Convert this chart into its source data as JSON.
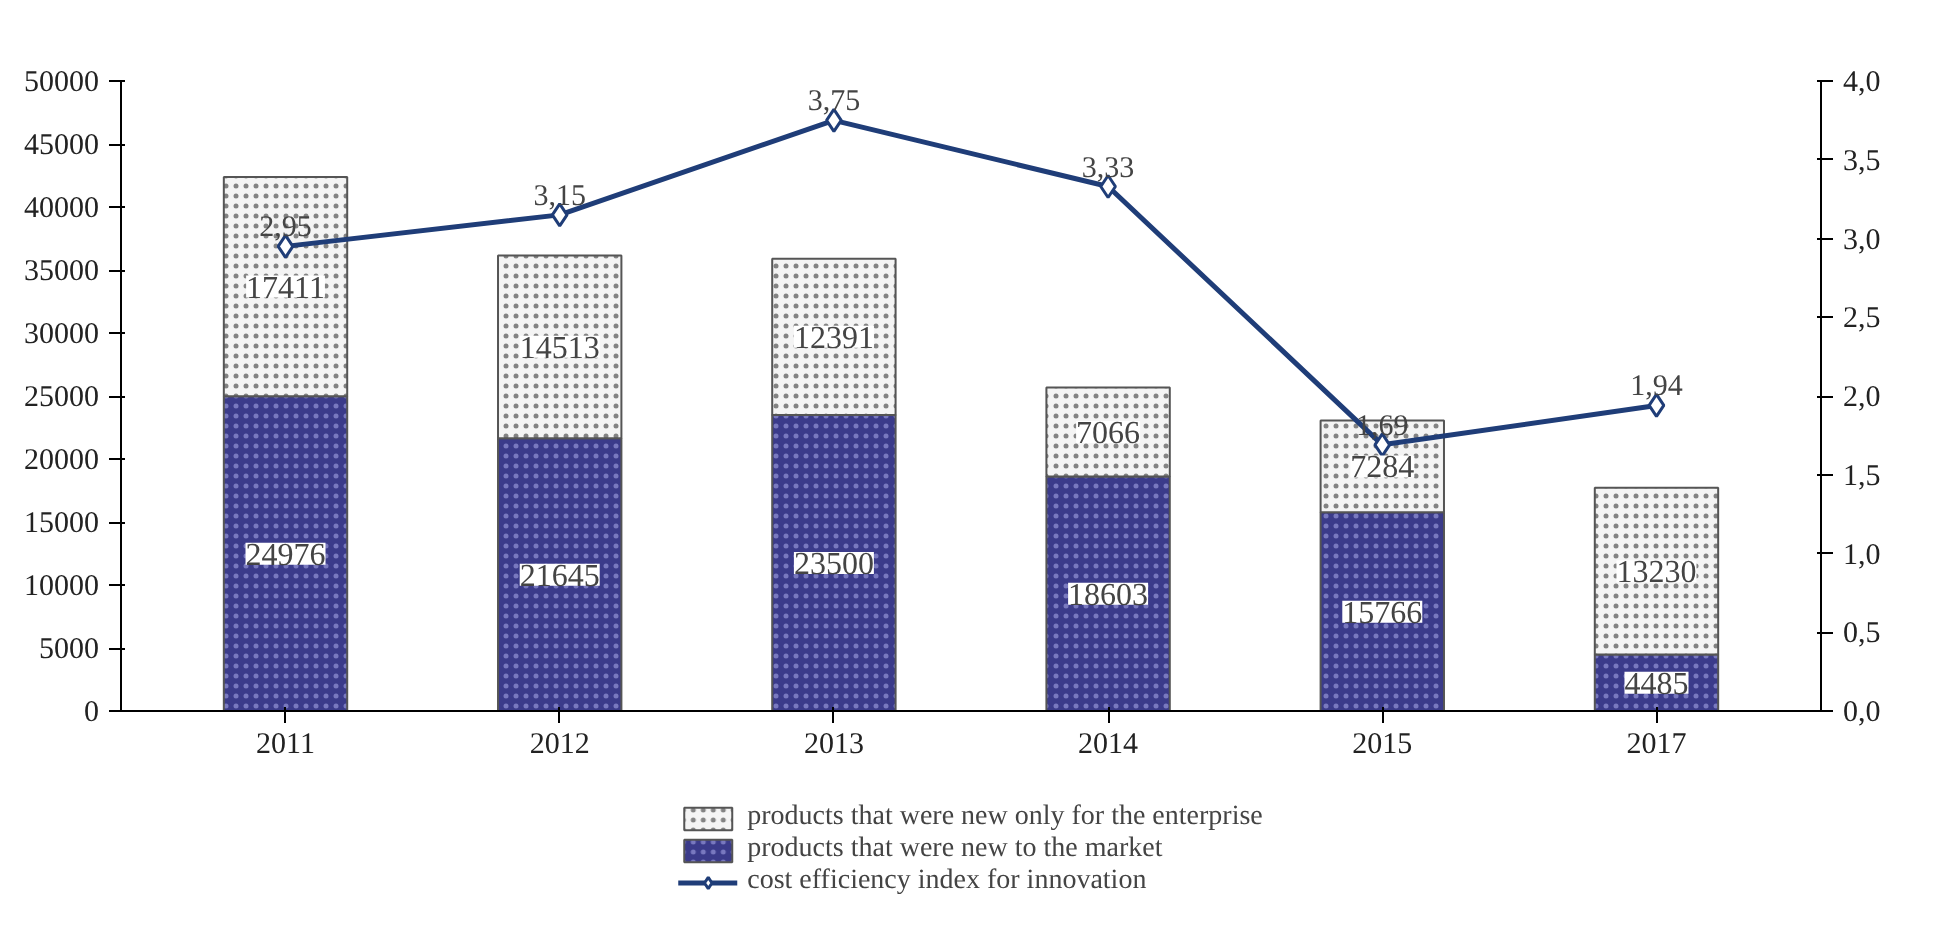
{
  "chart_data": {
    "type": "bar",
    "stacked": true,
    "categories": [
      "2011",
      "2012",
      "2013",
      "2014",
      "2015",
      "2017"
    ],
    "series": [
      {
        "name": "products that were new to the market",
        "color": "#3b3b8a",
        "values": [
          24976,
          21645,
          23500,
          18603,
          15766,
          4485
        ]
      },
      {
        "name": "products that were new only for the enterprise",
        "color": "#f4f4f4",
        "values": [
          17411,
          14513,
          12391,
          7066,
          7284,
          13230
        ]
      },
      {
        "name": "cost efficiency index for innovation",
        "type": "line",
        "axis": "y2",
        "color": "#1f3d78",
        "marker": "diamond",
        "values": [
          2.95,
          3.15,
          3.75,
          3.33,
          1.69,
          1.94
        ],
        "value_labels": [
          "2,95",
          "3,15",
          "3,75",
          "3,33",
          "1,69",
          "1,94"
        ]
      }
    ],
    "data_labels": true,
    "ylim": [
      0,
      50000
    ],
    "yticks": [
      0,
      5000,
      10000,
      15000,
      20000,
      25000,
      30000,
      35000,
      40000,
      45000,
      50000
    ],
    "y2lim": [
      0,
      4.0
    ],
    "y2ticks": [
      {
        "value": 0,
        "label": "0,0"
      },
      {
        "value": 0.5,
        "label": "0,5"
      },
      {
        "value": 1.0,
        "label": "1,0"
      },
      {
        "value": 1.5,
        "label": "1,5"
      },
      {
        "value": 2.0,
        "label": "2,0"
      },
      {
        "value": 2.5,
        "label": "2,5"
      },
      {
        "value": 3.0,
        "label": "3,0"
      },
      {
        "value": 3.5,
        "label": "3,5"
      },
      {
        "value": 4.0,
        "label": "4,0"
      }
    ],
    "legend": "bottom",
    "grid": false
  }
}
